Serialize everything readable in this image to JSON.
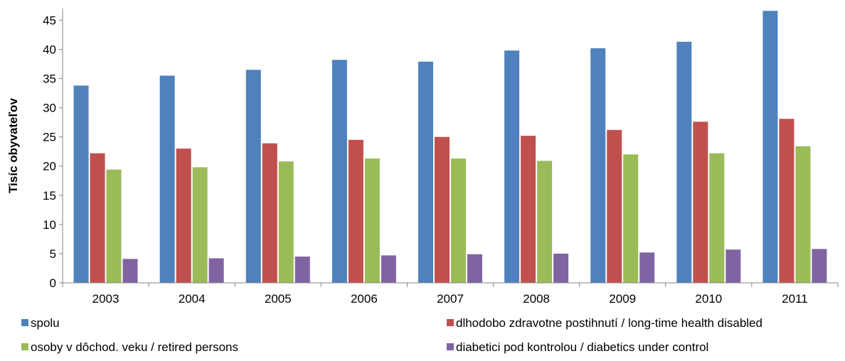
{
  "chart_data": {
    "type": "bar",
    "title": "",
    "xlabel": "",
    "ylabel": "Tisíc obyvateľov",
    "ylim": [
      0,
      47
    ],
    "yticks": [
      0,
      5,
      10,
      15,
      20,
      25,
      30,
      35,
      40,
      45
    ],
    "grid": false,
    "legend_position": "bottom",
    "categories": [
      "2003",
      "2004",
      "2005",
      "2006",
      "2007",
      "2008",
      "2009",
      "2010",
      "2011"
    ],
    "series": [
      {
        "name": "spolu",
        "color": "#4F81BD",
        "values": [
          33.8,
          35.5,
          36.5,
          38.2,
          37.9,
          39.8,
          40.2,
          41.3,
          46.6
        ]
      },
      {
        "name": "dlhodobo zdravotne postihnutí / long-time health disabled",
        "color": "#C0504D",
        "values": [
          22.2,
          23.0,
          23.9,
          24.5,
          25.0,
          25.2,
          26.2,
          27.6,
          28.1
        ]
      },
      {
        "name": "osoby v dôchod. veku / retired persons",
        "color": "#9BBB59",
        "values": [
          19.4,
          19.8,
          20.8,
          21.3,
          21.3,
          20.9,
          22.0,
          22.2,
          23.4
        ]
      },
      {
        "name": "diabetici pod kontrolou / diabetics under control",
        "color": "#8064A2",
        "values": [
          4.1,
          4.2,
          4.5,
          4.7,
          4.9,
          5.0,
          5.2,
          5.7,
          5.8
        ]
      }
    ]
  }
}
